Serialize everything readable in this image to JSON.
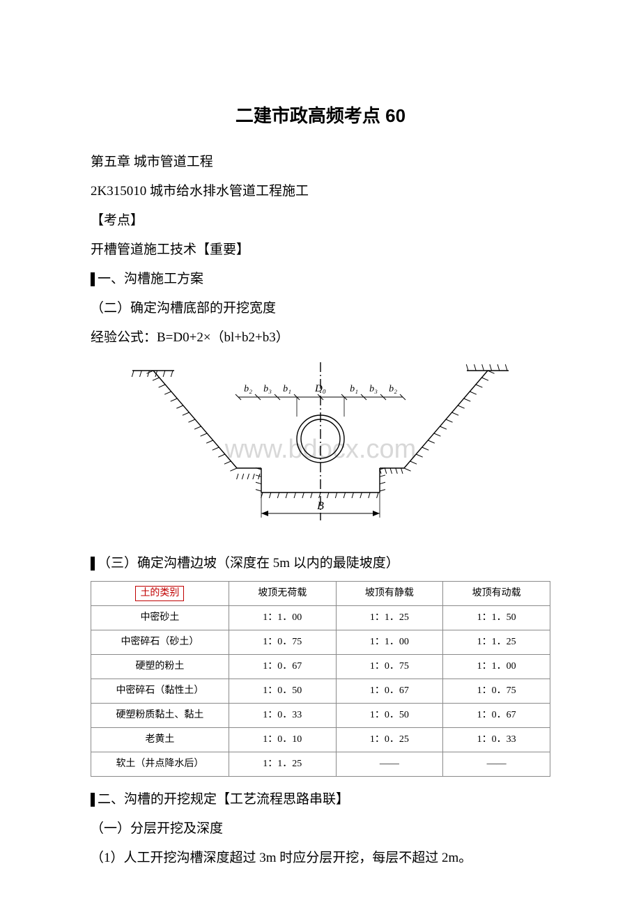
{
  "title": "二建市政高频考点 60",
  "p1": "第五章 城市管道工程",
  "p2": "2K315010  城市给水排水管道工程施工",
  "p3": "【考点】",
  "p4": "开槽管道施工技术【重要】",
  "s1": "一、沟槽施工方案",
  "p5": "（二）确定沟槽底部的开挖宽度",
  "p6": "经验公式：B=D0+2×（bl+b2+b3）",
  "s3": "（三）确定沟槽边坡（深度在 5m 以内的最陡坡度）",
  "s2": "二、沟槽的开挖规定【工艺流程思路串联】",
  "p7": "（一）分层开挖及深度",
  "p8": "（1）人工开挖沟槽深度超过 3m 时应分层开挖，每层不超过 2m。",
  "diagram": {
    "labels": {
      "D0": "D₀",
      "b1": "b₁",
      "b2": "b₂",
      "b3": "b₃",
      "B": "B"
    },
    "watermark": "www.bdocx.com",
    "stroke": "#000000",
    "stroke_width": 1.4,
    "hatch_stroke": "#000000",
    "watermark_color": "#d8d8d8"
  },
  "table": {
    "header": [
      "土的类别",
      "坡顶无荷载",
      "坡顶有静载",
      "坡顶有动载"
    ],
    "rows": [
      [
        "中密砂土",
        "1：1．00",
        "1：1．25",
        "1：1．50"
      ],
      [
        "中密碎石（砂土）",
        "1：0．75",
        "1：1．00",
        "1：1．25"
      ],
      [
        "硬塑的粉土",
        "1：0．67",
        "1：0．75",
        "1：1．00"
      ],
      [
        "中密碎石（黏性土）",
        "1：0．50",
        "1：0．67",
        "1：0．75"
      ],
      [
        "硬塑粉质黏土、黏土",
        "1：0．33",
        "1：0．50",
        "1：0．67"
      ],
      [
        "老黄土",
        "1：0．10",
        "1：0．25",
        "1：0．33"
      ],
      [
        "软土（井点降水后）",
        "1：1．25",
        "——",
        "——"
      ]
    ],
    "header_red_index": 0,
    "border_color": "#8a8a8a",
    "font_size": 14
  }
}
